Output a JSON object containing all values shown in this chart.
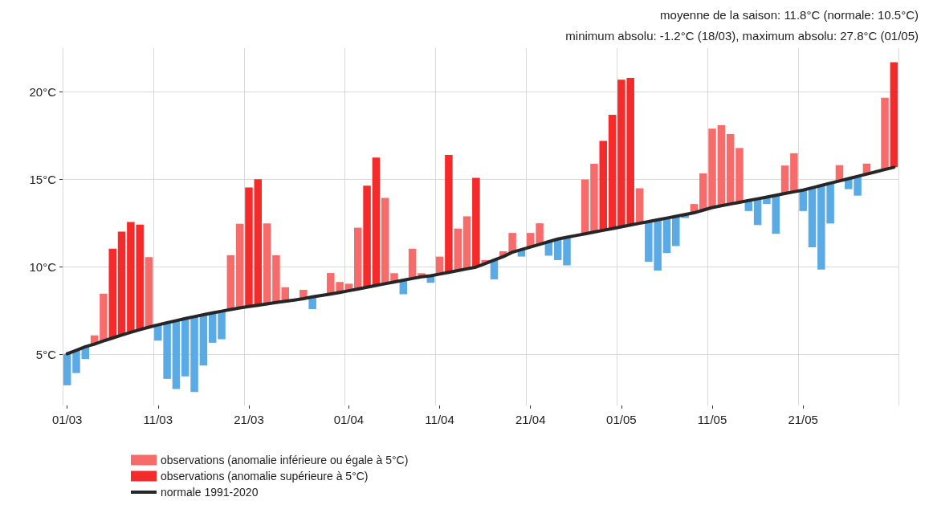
{
  "chart_data": {
    "type": "bar",
    "title": "moyenne de la saison: 11.8°C (normale: 10.5°C)",
    "subtitle": "minimum absolu: -1.2°C (18/03), maximum absolu: 27.8°C (01/05)",
    "categories": [
      "01/03",
      null,
      null,
      null,
      null,
      null,
      null,
      null,
      null,
      null,
      "11/03",
      null,
      null,
      null,
      null,
      null,
      null,
      null,
      null,
      null,
      "21/03",
      null,
      null,
      null,
      null,
      null,
      null,
      null,
      null,
      null,
      null,
      "01/04",
      null,
      null,
      null,
      null,
      null,
      null,
      null,
      null,
      null,
      "11/04",
      null,
      null,
      null,
      null,
      null,
      null,
      null,
      null,
      null,
      "21/04",
      null,
      null,
      null,
      null,
      null,
      null,
      null,
      null,
      null,
      "01/05",
      null,
      null,
      null,
      null,
      null,
      null,
      null,
      null,
      null,
      "11/05",
      null,
      null,
      null,
      null,
      null,
      null,
      null,
      null,
      null,
      "21/05",
      null,
      null,
      null,
      null,
      null,
      null,
      null,
      null,
      null,
      null
    ],
    "ylim": [
      2.1,
      22.5
    ],
    "yticks": [
      {
        "value": 5,
        "label": "5°C"
      },
      {
        "value": 10,
        "label": "10°C"
      },
      {
        "value": 15,
        "label": "15°C"
      },
      {
        "value": 20,
        "label": "20°C"
      }
    ],
    "grid": true,
    "legend": "bottom",
    "marker": "none",
    "series": [
      {
        "name": "observations (anomalie inférieure ou égale à 5°C)",
        "color": "#f76b6b",
        "base": [
          5.05,
          5.25,
          5.45,
          5.6,
          5.78,
          null,
          null,
          null,
          null,
          6.57,
          6.7,
          6.82,
          6.94,
          7.06,
          7.17,
          7.28,
          7.38,
          7.48,
          7.58,
          7.67,
          null,
          null,
          7.9,
          7.98,
          8.05,
          8.12,
          8.2,
          8.3,
          8.38,
          8.46,
          8.55,
          8.65,
          8.75,
          null,
          null,
          9.05,
          9.15,
          9.25,
          9.35,
          9.45,
          9.5,
          9.6,
          null,
          9.8,
          9.9,
          null,
          10.2,
          10.4,
          10.6,
          10.85,
          11.0,
          11.15,
          11.3,
          11.45,
          11.6,
          11.7,
          11.8,
          11.9,
          12.0,
          null,
          null,
          null,
          null,
          12.5,
          12.6,
          12.7,
          12.8,
          12.9,
          13.0,
          13.1,
          13.25,
          13.4,
          13.5,
          13.6,
          13.7,
          13.8,
          13.9,
          14.0,
          14.1,
          14.2,
          14.3,
          14.4,
          14.53,
          14.66,
          14.79,
          14.92,
          15.05,
          15.18,
          15.31,
          15.44,
          15.57,
          null
        ],
        "colors": [
          "#5aaae6",
          "#5aaae6",
          "#5aaae6",
          "#f76b6b",
          "#f76b6b",
          null,
          null,
          null,
          null,
          "#f76b6b",
          "#5aaae6",
          "#5aaae6",
          "#5aaae6",
          "#5aaae6",
          "#5aaae6",
          "#5aaae6",
          "#5aaae6",
          "#5aaae6",
          "#f76b6b",
          "#f76b6b",
          null,
          null,
          "#f76b6b",
          "#f76b6b",
          "#f76b6b",
          "#f76b6b",
          "#f76b6b",
          "#5aaae6",
          "#f76b6b",
          "#f76b6b",
          "#f76b6b",
          "#f76b6b",
          "#f76b6b",
          null,
          null,
          "#f76b6b",
          "#f76b6b",
          "#5aaae6",
          "#f76b6b",
          "#f76b6b",
          "#5aaae6",
          "#f76b6b",
          null,
          "#f76b6b",
          "#f76b6b",
          null,
          "#f76b6b",
          "#5aaae6",
          "#f76b6b",
          "#f76b6b",
          "#5aaae6",
          "#f76b6b",
          "#f76b6b",
          "#5aaae6",
          "#5aaae6",
          "#5aaae6",
          "#f76b6b",
          "#f76b6b",
          "#f76b6b",
          null,
          null,
          null,
          null,
          "#f76b6b",
          "#5aaae6",
          "#5aaae6",
          "#5aaae6",
          "#5aaae6",
          "#5aaae6",
          "#f76b6b",
          "#f76b6b",
          "#f76b6b",
          "#f76b6b",
          "#f76b6b",
          "#f76b6b",
          "#5aaae6",
          "#5aaae6",
          "#5aaae6",
          "#5aaae6",
          "#f76b6b",
          "#f76b6b",
          "#5aaae6",
          "#5aaae6",
          "#5aaae6",
          "#5aaae6",
          "#f76b6b",
          "#5aaae6",
          "#5aaae6",
          "#f76b6b",
          "#f76b6b",
          "#f76b6b",
          null
        ],
        "values": [
          -1.8,
          -1.3,
          -0.7,
          0.5,
          2.7,
          null,
          null,
          null,
          null,
          4.0,
          -0.9,
          -3.2,
          -3.9,
          -3.3,
          -4.3,
          -2.9,
          -1.7,
          -1.6,
          3.1,
          4.8,
          null,
          null,
          4.6,
          2.7,
          0.8,
          0,
          0.5,
          -0.7,
          0,
          1.2,
          0.6,
          0.4,
          3.5,
          null,
          null,
          4.9,
          0.5,
          -0.8,
          1.7,
          0.2,
          -0.4,
          1.0,
          null,
          2.4,
          3.0,
          null,
          0.2,
          -1.1,
          0.3,
          1.1,
          -0.4,
          0.8,
          1.2,
          -0.8,
          -1.2,
          -1.6,
          0,
          3.1,
          3.9,
          null,
          null,
          null,
          null,
          2.0,
          -2.3,
          -2.9,
          -2.0,
          -1.7,
          -0.2,
          0.5,
          2.1,
          4.5,
          4.6,
          4.0,
          3.1,
          -0.6,
          -1.5,
          -0.4,
          -2.2,
          1.6,
          2.2,
          -1.2,
          -3.4,
          -4.8,
          -2.3,
          0.9,
          -0.6,
          -1.1,
          0.6,
          0,
          4.1,
          null
        ]
      },
      {
        "name": "observations (anomalie supérieure à 5°C)",
        "color": "#f52a2a",
        "base": [
          null,
          null,
          null,
          null,
          null,
          5.95,
          6.12,
          6.28,
          6.43,
          null,
          null,
          null,
          null,
          null,
          null,
          null,
          null,
          null,
          null,
          null,
          7.75,
          7.82,
          null,
          null,
          null,
          null,
          null,
          null,
          null,
          null,
          null,
          null,
          null,
          8.85,
          8.95,
          null,
          null,
          null,
          null,
          null,
          null,
          null,
          9.7,
          null,
          null,
          10.0,
          null,
          null,
          null,
          null,
          null,
          null,
          null,
          null,
          null,
          null,
          null,
          null,
          null,
          12.1,
          12.2,
          12.3,
          12.4,
          null,
          null,
          null,
          null,
          null,
          null,
          null,
          null,
          null,
          null,
          null,
          null,
          null,
          null,
          null,
          null,
          null,
          null,
          null,
          null,
          null,
          null,
          null,
          null,
          null,
          null,
          null,
          null,
          15.7
        ],
        "values": [
          null,
          null,
          null,
          null,
          null,
          5.1,
          5.9,
          6.3,
          6.0,
          null,
          null,
          null,
          null,
          null,
          null,
          null,
          null,
          null,
          null,
          null,
          6.8,
          7.2,
          null,
          null,
          null,
          null,
          null,
          null,
          null,
          null,
          null,
          null,
          null,
          5.8,
          7.3,
          null,
          null,
          null,
          null,
          null,
          null,
          null,
          6.7,
          null,
          null,
          5.1,
          null,
          null,
          null,
          null,
          null,
          null,
          null,
          null,
          null,
          null,
          null,
          null,
          null,
          5.1,
          6.5,
          8.4,
          8.4,
          null,
          null,
          null,
          null,
          null,
          null,
          null,
          null,
          null,
          null,
          null,
          null,
          null,
          null,
          null,
          null,
          null,
          null,
          null,
          null,
          null,
          null,
          null,
          null,
          null,
          null,
          null,
          null,
          6.0
        ]
      },
      {
        "type": "line",
        "name": "normale 1991-2020",
        "color": "#262626",
        "values": [
          5.05,
          5.25,
          5.45,
          5.6,
          5.78,
          5.95,
          6.12,
          6.28,
          6.43,
          6.57,
          6.7,
          6.82,
          6.94,
          7.06,
          7.17,
          7.28,
          7.38,
          7.48,
          7.58,
          7.67,
          7.75,
          7.82,
          7.9,
          7.98,
          8.05,
          8.12,
          8.2,
          8.3,
          8.38,
          8.46,
          8.55,
          8.65,
          8.75,
          8.85,
          8.95,
          9.05,
          9.15,
          9.25,
          9.35,
          9.45,
          9.5,
          9.6,
          9.7,
          9.8,
          9.9,
          10.0,
          10.2,
          10.4,
          10.6,
          10.85,
          11.0,
          11.15,
          11.3,
          11.45,
          11.6,
          11.7,
          11.8,
          11.9,
          12.0,
          12.1,
          12.2,
          12.3,
          12.4,
          12.5,
          12.6,
          12.7,
          12.8,
          12.9,
          13.0,
          13.1,
          13.25,
          13.4,
          13.5,
          13.6,
          13.7,
          13.8,
          13.9,
          14.0,
          14.1,
          14.2,
          14.3,
          14.4,
          14.53,
          14.66,
          14.79,
          14.92,
          15.05,
          15.18,
          15.31,
          15.44,
          15.57,
          15.7
        ]
      }
    ]
  }
}
